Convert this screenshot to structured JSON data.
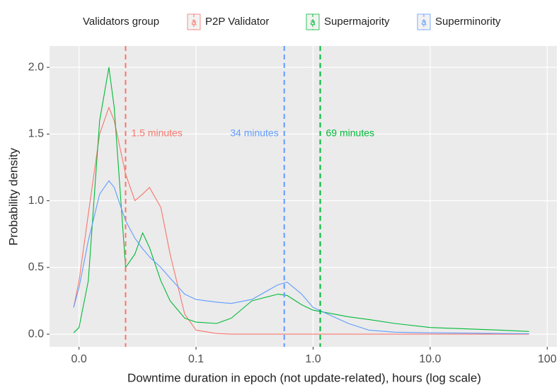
{
  "chart_data": {
    "type": "line",
    "x_label": "Downtime duration in epoch (not update-related), hours (log scale)",
    "y_label": "Probability density",
    "legend_title": "Validators group",
    "legend_glyph": "a",
    "legend_position": "top",
    "x_scale": "log",
    "grid": true,
    "xlim": [
      0.0056,
      121
    ],
    "ylim": [
      -0.095,
      2.16
    ],
    "xticks": [
      {
        "value": 0.01,
        "label": "0.0"
      },
      0.1,
      {
        "value": 1,
        "label": "1.0"
      },
      {
        "value": 10,
        "label": "10.0"
      },
      100
    ],
    "yticks": [
      {
        "value": 0,
        "label": "0.0"
      },
      0.5,
      {
        "value": 1,
        "label": "1.0"
      },
      1.5,
      {
        "value": 2,
        "label": "2.0"
      }
    ],
    "x": [
      0.009,
      0.01,
      0.012,
      0.015,
      0.018,
      0.02,
      0.025,
      0.03,
      0.035,
      0.04,
      0.05,
      0.06,
      0.08,
      0.1,
      0.15,
      0.2,
      0.3,
      0.5,
      0.6,
      0.8,
      1,
      2,
      3,
      5,
      10,
      20,
      40,
      70
    ],
    "series": [
      {
        "name": "P2P Validator",
        "color": "#F8766D",
        "values": [
          0.2,
          0.4,
          0.9,
          1.5,
          1.7,
          1.6,
          1.2,
          1.0,
          1.05,
          1.1,
          0.95,
          0.6,
          0.15,
          0.03,
          0.005,
          0,
          0,
          0,
          0,
          0,
          0,
          0,
          0,
          0,
          0,
          0,
          0,
          0
        ],
        "vline": 0.025,
        "vline_label": "1.5 minutes"
      },
      {
        "name": "Supermajority",
        "color": "#00BA38",
        "values": [
          0.01,
          0.05,
          0.4,
          1.6,
          2.0,
          1.7,
          0.5,
          0.6,
          0.76,
          0.65,
          0.4,
          0.25,
          0.12,
          0.09,
          0.08,
          0.12,
          0.25,
          0.3,
          0.29,
          0.22,
          0.18,
          0.13,
          0.11,
          0.08,
          0.05,
          0.04,
          0.03,
          0.02
        ],
        "vline": 1.15,
        "vline_label": "69 minutes"
      },
      {
        "name": "Superminority",
        "color": "#619CFF",
        "values": [
          0.2,
          0.35,
          0.7,
          1.05,
          1.15,
          1.1,
          0.85,
          0.72,
          0.64,
          0.58,
          0.5,
          0.42,
          0.3,
          0.26,
          0.24,
          0.23,
          0.26,
          0.37,
          0.39,
          0.3,
          0.2,
          0.08,
          0.03,
          0.015,
          0.01,
          0.008,
          0.005,
          0.003
        ],
        "vline": 0.567,
        "vline_label": "34 minutes"
      }
    ]
  }
}
